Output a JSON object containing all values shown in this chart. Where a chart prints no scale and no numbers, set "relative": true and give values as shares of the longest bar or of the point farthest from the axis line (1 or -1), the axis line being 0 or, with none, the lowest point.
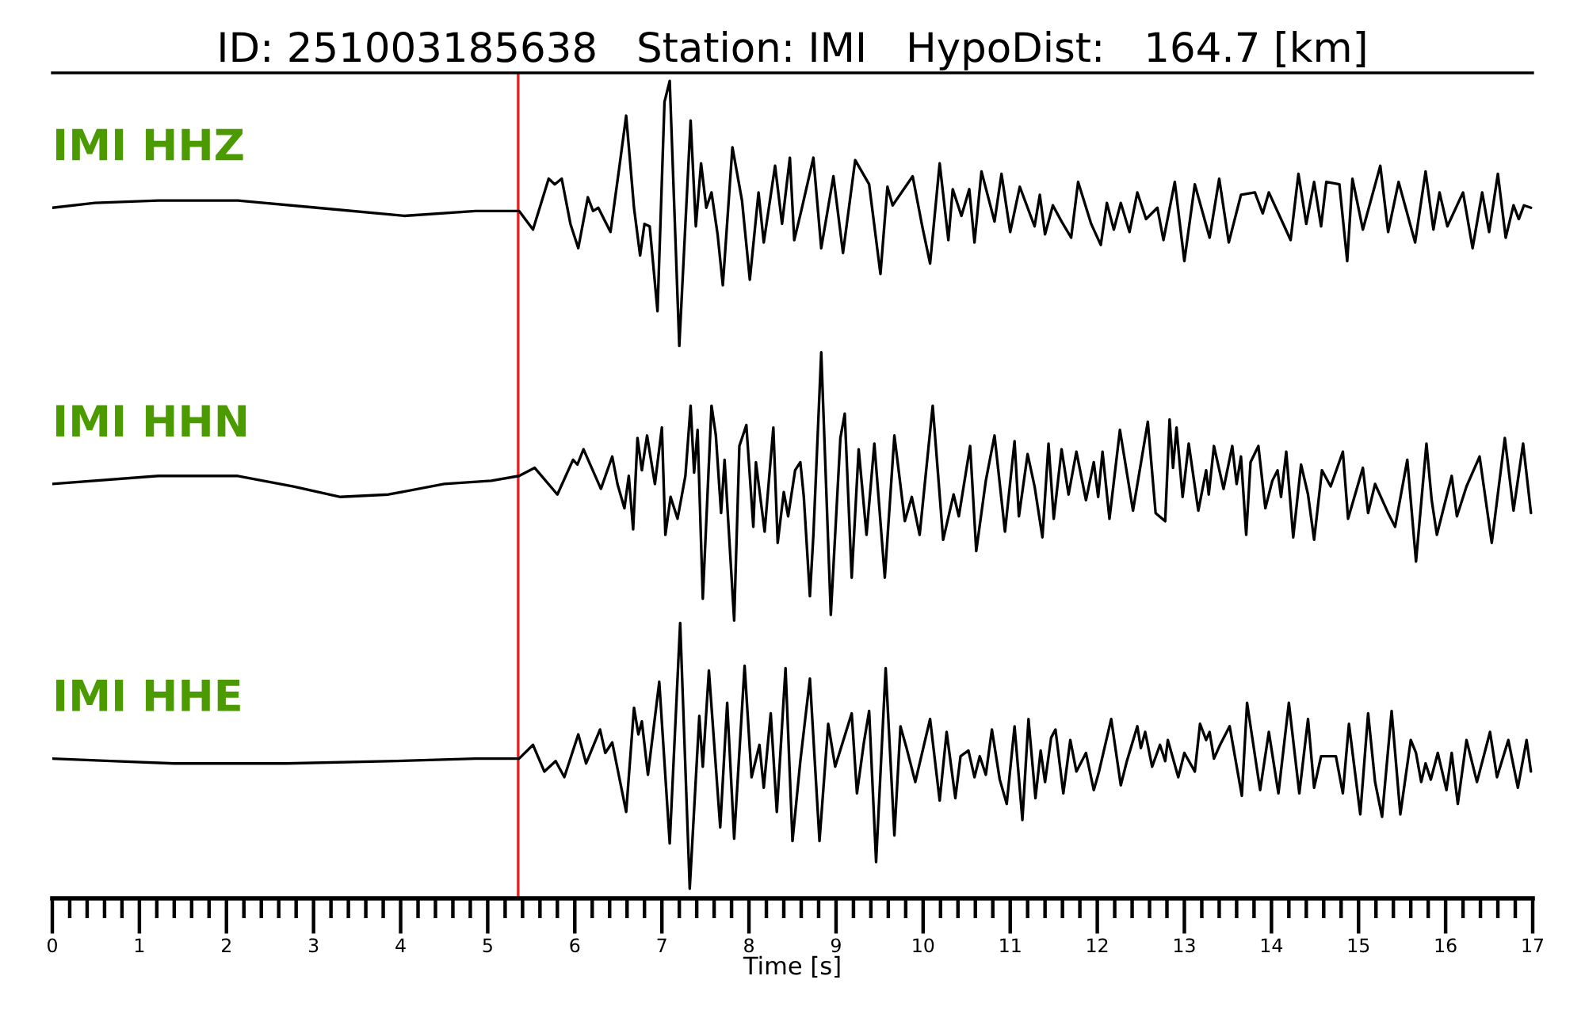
{
  "chart_data": {
    "type": "line",
    "title": "ID: 251003185638   Station: IMI   HypoDist:   164.7 [km]",
    "relative": true,
    "xlim": [
      0,
      17
    ],
    "xlabel": "Time [s]",
    "tick_labels": "x",
    "xticks": [
      0,
      {
        "value": 0.2,
        "label": null
      },
      {
        "value": 0.4,
        "label": null
      },
      {
        "value": 0.6,
        "label": null
      },
      {
        "value": 0.8,
        "label": null
      },
      1,
      {
        "value": 1.2,
        "label": null
      },
      {
        "value": 1.4,
        "label": null
      },
      {
        "value": 1.6,
        "label": null
      },
      {
        "value": 1.8,
        "label": null
      },
      2,
      {
        "value": 2.2,
        "label": null
      },
      {
        "value": 2.4,
        "label": null
      },
      {
        "value": 2.6,
        "label": null
      },
      {
        "value": 2.8,
        "label": null
      },
      3,
      {
        "value": 3.2,
        "label": null
      },
      {
        "value": 3.4,
        "label": null
      },
      {
        "value": 3.6,
        "label": null
      },
      {
        "value": 3.8,
        "label": null
      },
      4,
      {
        "value": 4.2,
        "label": null
      },
      {
        "value": 4.4,
        "label": null
      },
      {
        "value": 4.6,
        "label": null
      },
      {
        "value": 4.8,
        "label": null
      },
      5,
      {
        "value": 5.2,
        "label": null
      },
      {
        "value": 5.4,
        "label": null
      },
      {
        "value": 5.6,
        "label": null
      },
      {
        "value": 5.8,
        "label": null
      },
      6,
      {
        "value": 6.2,
        "label": null
      },
      {
        "value": 6.4,
        "label": null
      },
      {
        "value": 6.6,
        "label": null
      },
      {
        "value": 6.8,
        "label": null
      },
      7,
      {
        "value": 7.2,
        "label": null
      },
      {
        "value": 7.4,
        "label": null
      },
      {
        "value": 7.6,
        "label": null
      },
      {
        "value": 7.8,
        "label": null
      },
      8,
      {
        "value": 8.2,
        "label": null
      },
      {
        "value": 8.4,
        "label": null
      },
      {
        "value": 8.6,
        "label": null
      },
      {
        "value": 8.8,
        "label": null
      },
      9,
      {
        "value": 9.2,
        "label": null
      },
      {
        "value": 9.4,
        "label": null
      },
      {
        "value": 9.6,
        "label": null
      },
      {
        "value": 9.8,
        "label": null
      },
      10,
      {
        "value": 10.2,
        "label": null
      },
      {
        "value": 10.4,
        "label": null
      },
      {
        "value": 10.6,
        "label": null
      },
      {
        "value": 10.8,
        "label": null
      },
      11,
      {
        "value": 11.2,
        "label": null
      },
      {
        "value": 11.4,
        "label": null
      },
      {
        "value": 11.6,
        "label": null
      },
      {
        "value": 11.8,
        "label": null
      },
      12,
      {
        "value": 12.2,
        "label": null
      },
      {
        "value": 12.4,
        "label": null
      },
      {
        "value": 12.6,
        "label": null
      },
      {
        "value": 12.8,
        "label": null
      },
      13,
      {
        "value": 13.2,
        "label": null
      },
      {
        "value": 13.4,
        "label": null
      },
      {
        "value": 13.6,
        "label": null
      },
      {
        "value": 13.8,
        "label": null
      },
      14,
      {
        "value": 14.2,
        "label": null
      },
      {
        "value": 14.4,
        "label": null
      },
      {
        "value": 14.6,
        "label": null
      },
      {
        "value": 14.8,
        "label": null
      },
      15,
      {
        "value": 15.2,
        "label": null
      },
      {
        "value": 15.4,
        "label": null
      },
      {
        "value": 15.6,
        "label": null
      },
      {
        "value": 15.8,
        "label": null
      },
      16,
      {
        "value": 16.2,
        "label": null
      },
      {
        "value": 16.4,
        "label": null
      },
      {
        "value": 16.6,
        "label": null
      },
      {
        "value": 16.8,
        "label": null
      },
      17
    ],
    "ref_lines": [
      {
        "axis": "x",
        "value": 5.35,
        "color": "#dd2222"
      }
    ],
    "series": [
      {
        "name": "IMI HHZ",
        "color": "#000000",
        "x": [
          0,
          0.49,
          1.22,
          2.13,
          3.04,
          4.04,
          4.86,
          5.36,
          5.52,
          5.7,
          5.77,
          5.85,
          5.95,
          6.04,
          6.15,
          6.21,
          6.27,
          6.41,
          6.51,
          6.59,
          6.68,
          6.75,
          6.8,
          6.86,
          6.95,
          7.03,
          7.09,
          7.2,
          7.33,
          7.39,
          7.45,
          7.51,
          7.57,
          7.64,
          7.7,
          7.81,
          7.92,
          8.01,
          8.11,
          8.17,
          8.3,
          8.38,
          8.47,
          8.52,
          8.6,
          8.74,
          8.83,
          8.97,
          9.08,
          9.22,
          9.38,
          9.51,
          9.59,
          9.65,
          9.88,
          9.99,
          10.08,
          10.19,
          10.29,
          10.34,
          10.44,
          10.53,
          10.59,
          10.67,
          10.82,
          10.9,
          11.0,
          11.11,
          11.28,
          11.34,
          11.4,
          11.49,
          11.59,
          11.7,
          11.78,
          11.93,
          12.04,
          12.11,
          12.19,
          12.27,
          12.37,
          12.46,
          12.56,
          12.69,
          12.76,
          12.89,
          13.0,
          13.12,
          13.29,
          13.4,
          13.51,
          13.65,
          13.81,
          13.9,
          13.97,
          14.22,
          14.31,
          14.4,
          14.49,
          14.57,
          14.63,
          14.78,
          14.87,
          14.93,
          15.05,
          15.25,
          15.34,
          15.46,
          15.65,
          15.77,
          15.86,
          15.93,
          16.02,
          16.2,
          16.31,
          16.42,
          16.5,
          16.6,
          16.69,
          16.78,
          16.84,
          16.9,
          16.98
        ],
        "values": [
          0.843,
          0.849,
          0.852,
          0.852,
          0.843,
          0.833,
          0.839,
          0.839,
          0.816,
          0.879,
          0.872,
          0.879,
          0.823,
          0.793,
          0.856,
          0.839,
          0.843,
          0.813,
          0.892,
          0.957,
          0.843,
          0.784,
          0.823,
          0.82,
          0.715,
          0.974,
          1.0,
          0.672,
          0.951,
          0.82,
          0.898,
          0.843,
          0.862,
          0.81,
          0.747,
          0.918,
          0.852,
          0.754,
          0.862,
          0.8,
          0.895,
          0.823,
          0.905,
          0.803,
          0.839,
          0.905,
          0.793,
          0.882,
          0.787,
          0.902,
          0.872,
          0.761,
          0.869,
          0.846,
          0.882,
          0.82,
          0.774,
          0.898,
          0.803,
          0.866,
          0.833,
          0.866,
          0.8,
          0.888,
          0.826,
          0.885,
          0.813,
          0.869,
          0.82,
          0.859,
          0.81,
          0.846,
          0.826,
          0.806,
          0.875,
          0.823,
          0.797,
          0.849,
          0.816,
          0.849,
          0.813,
          0.862,
          0.829,
          0.843,
          0.803,
          0.875,
          0.777,
          0.872,
          0.806,
          0.879,
          0.8,
          0.859,
          0.862,
          0.836,
          0.862,
          0.803,
          0.885,
          0.823,
          0.875,
          0.82,
          0.875,
          0.872,
          0.777,
          0.879,
          0.816,
          0.895,
          0.813,
          0.875,
          0.8,
          0.888,
          0.816,
          0.862,
          0.82,
          0.862,
          0.793,
          0.862,
          0.813,
          0.885,
          0.806,
          0.846,
          0.829,
          0.846,
          0.843
        ]
      },
      {
        "name": "IMI HHN",
        "color": "#000000",
        "x": [
          0,
          1.22,
          2.13,
          2.77,
          3.31,
          3.86,
          4.5,
          5.04,
          5.36,
          5.54,
          5.8,
          5.98,
          6.03,
          6.1,
          6.3,
          6.43,
          6.49,
          6.57,
          6.62,
          6.67,
          6.72,
          6.77,
          6.83,
          6.92,
          7.0,
          7.04,
          7.1,
          7.18,
          7.27,
          7.33,
          7.37,
          7.41,
          7.47,
          7.57,
          7.62,
          7.68,
          7.72,
          7.83,
          7.89,
          7.97,
          8.05,
          8.08,
          8.18,
          8.28,
          8.33,
          8.4,
          8.45,
          8.53,
          8.59,
          8.63,
          8.7,
          8.74,
          8.83,
          8.94,
          9.05,
          9.1,
          9.18,
          9.26,
          9.35,
          9.44,
          9.56,
          9.67,
          9.79,
          9.87,
          9.96,
          10.11,
          10.23,
          10.35,
          10.41,
          10.54,
          10.61,
          10.72,
          10.82,
          10.94,
          11.05,
          11.1,
          11.2,
          11.28,
          11.37,
          11.44,
          11.5,
          11.59,
          11.67,
          11.76,
          11.87,
          11.96,
          12.01,
          12.06,
          12.14,
          12.26,
          12.41,
          12.58,
          12.67,
          12.78,
          12.83,
          12.87,
          12.91,
          12.98,
          13.05,
          13.16,
          13.25,
          13.28,
          13.34,
          13.45,
          13.55,
          13.6,
          13.65,
          13.71,
          13.76,
          13.85,
          13.93,
          14.01,
          14.07,
          14.11,
          14.17,
          14.25,
          14.34,
          14.42,
          14.49,
          14.58,
          14.68,
          14.82,
          14.88,
          15.05,
          15.11,
          15.19,
          15.34,
          15.42,
          15.56,
          15.66,
          15.78,
          15.84,
          15.9,
          16.07,
          16.13,
          16.24,
          16.39,
          16.53,
          16.68,
          16.78,
          16.89,
          16.98
        ],
        "values": [
          0.501,
          0.511,
          0.511,
          0.498,
          0.485,
          0.488,
          0.501,
          0.505,
          0.511,
          0.521,
          0.488,
          0.531,
          0.525,
          0.544,
          0.495,
          0.535,
          0.501,
          0.471,
          0.511,
          0.445,
          0.558,
          0.518,
          0.561,
          0.501,
          0.571,
          0.438,
          0.485,
          0.458,
          0.511,
          0.598,
          0.515,
          0.568,
          0.359,
          0.598,
          0.561,
          0.465,
          0.531,
          0.332,
          0.548,
          0.574,
          0.448,
          0.528,
          0.442,
          0.571,
          0.428,
          0.491,
          0.461,
          0.518,
          0.528,
          0.485,
          0.362,
          0.438,
          0.664,
          0.339,
          0.558,
          0.588,
          0.385,
          0.544,
          0.438,
          0.551,
          0.385,
          0.561,
          0.455,
          0.485,
          0.438,
          0.598,
          0.432,
          0.488,
          0.461,
          0.548,
          0.418,
          0.505,
          0.561,
          0.442,
          0.554,
          0.461,
          0.538,
          0.498,
          0.435,
          0.551,
          0.458,
          0.544,
          0.488,
          0.541,
          0.481,
          0.528,
          0.485,
          0.541,
          0.458,
          0.568,
          0.468,
          0.578,
          0.465,
          0.455,
          0.581,
          0.521,
          0.571,
          0.485,
          0.551,
          0.468,
          0.518,
          0.488,
          0.548,
          0.495,
          0.548,
          0.501,
          0.535,
          0.438,
          0.528,
          0.548,
          0.471,
          0.505,
          0.518,
          0.485,
          0.541,
          0.435,
          0.525,
          0.488,
          0.432,
          0.518,
          0.498,
          0.541,
          0.458,
          0.521,
          0.465,
          0.501,
          0.465,
          0.448,
          0.531,
          0.405,
          0.551,
          0.481,
          0.438,
          0.511,
          0.461,
          0.498,
          0.535,
          0.428,
          0.558,
          0.468,
          0.551,
          0.465
        ]
      },
      {
        "name": "IMI HHE",
        "color": "#000000",
        "x": [
          0,
          0.67,
          1.4,
          2.68,
          3.95,
          4.86,
          5.36,
          5.52,
          5.65,
          5.78,
          5.88,
          6.04,
          6.13,
          6.29,
          6.35,
          6.43,
          6.59,
          6.68,
          6.73,
          6.77,
          6.84,
          6.97,
          7.09,
          7.21,
          7.32,
          7.43,
          7.47,
          7.54,
          7.67,
          7.75,
          7.83,
          7.95,
          8.03,
          8.12,
          8.17,
          8.25,
          8.32,
          8.42,
          8.5,
          8.59,
          8.7,
          8.81,
          8.91,
          8.99,
          9.18,
          9.24,
          9.32,
          9.38,
          9.46,
          9.57,
          9.67,
          9.74,
          9.81,
          9.91,
          10.08,
          10.19,
          10.27,
          10.37,
          10.43,
          10.52,
          10.59,
          10.65,
          10.72,
          10.79,
          10.88,
          10.96,
          11.05,
          11.14,
          11.21,
          11.29,
          11.35,
          11.4,
          11.47,
          11.52,
          11.61,
          11.69,
          11.76,
          11.87,
          11.96,
          12.02,
          12.16,
          12.27,
          12.34,
          12.46,
          12.5,
          12.55,
          12.63,
          12.72,
          12.78,
          12.81,
          12.93,
          13.0,
          13.12,
          13.18,
          13.25,
          13.29,
          13.34,
          13.41,
          13.52,
          13.66,
          13.72,
          13.87,
          13.97,
          14.08,
          14.2,
          14.32,
          14.42,
          14.49,
          14.57,
          14.74,
          14.82,
          14.89,
          15.02,
          15.11,
          15.19,
          15.27,
          15.38,
          15.48,
          15.6,
          15.66,
          15.72,
          15.77,
          15.83,
          15.91,
          16.01,
          16.07,
          16.14,
          16.24,
          16.36,
          16.51,
          16.59,
          16.72,
          16.83,
          16.93,
          16.98
        ],
        "values": [
          0.161,
          0.158,
          0.155,
          0.155,
          0.158,
          0.161,
          0.161,
          0.178,
          0.145,
          0.158,
          0.138,
          0.191,
          0.155,
          0.197,
          0.168,
          0.181,
          0.095,
          0.224,
          0.191,
          0.207,
          0.141,
          0.256,
          0.056,
          0.329,
          0,
          0.214,
          0.151,
          0.27,
          0.076,
          0.23,
          0.062,
          0.276,
          0.138,
          0.178,
          0.125,
          0.217,
          0.095,
          0.273,
          0.059,
          0.158,
          0.26,
          0.059,
          0.204,
          0.151,
          0.217,
          0.118,
          0.181,
          0.22,
          0.033,
          0.273,
          0.066,
          0.201,
          0.174,
          0.132,
          0.21,
          0.109,
          0.194,
          0.112,
          0.164,
          0.171,
          0.138,
          0.164,
          0.141,
          0.197,
          0.135,
          0.105,
          0.201,
          0.085,
          0.21,
          0.112,
          0.171,
          0.132,
          0.187,
          0.197,
          0.118,
          0.184,
          0.145,
          0.168,
          0.122,
          0.145,
          0.21,
          0.128,
          0.158,
          0.201,
          0.174,
          0.194,
          0.151,
          0.178,
          0.158,
          0.184,
          0.138,
          0.168,
          0.145,
          0.204,
          0.184,
          0.194,
          0.161,
          0.178,
          0.201,
          0.115,
          0.23,
          0.122,
          0.194,
          0.118,
          0.23,
          0.118,
          0.21,
          0.125,
          0.164,
          0.164,
          0.118,
          0.204,
          0.092,
          0.217,
          0.132,
          0.089,
          0.22,
          0.092,
          0.184,
          0.168,
          0.132,
          0.155,
          0.135,
          0.168,
          0.122,
          0.168,
          0.105,
          0.184,
          0.132,
          0.194,
          0.138,
          0.184,
          0.125,
          0.184,
          0.145
        ]
      }
    ]
  }
}
